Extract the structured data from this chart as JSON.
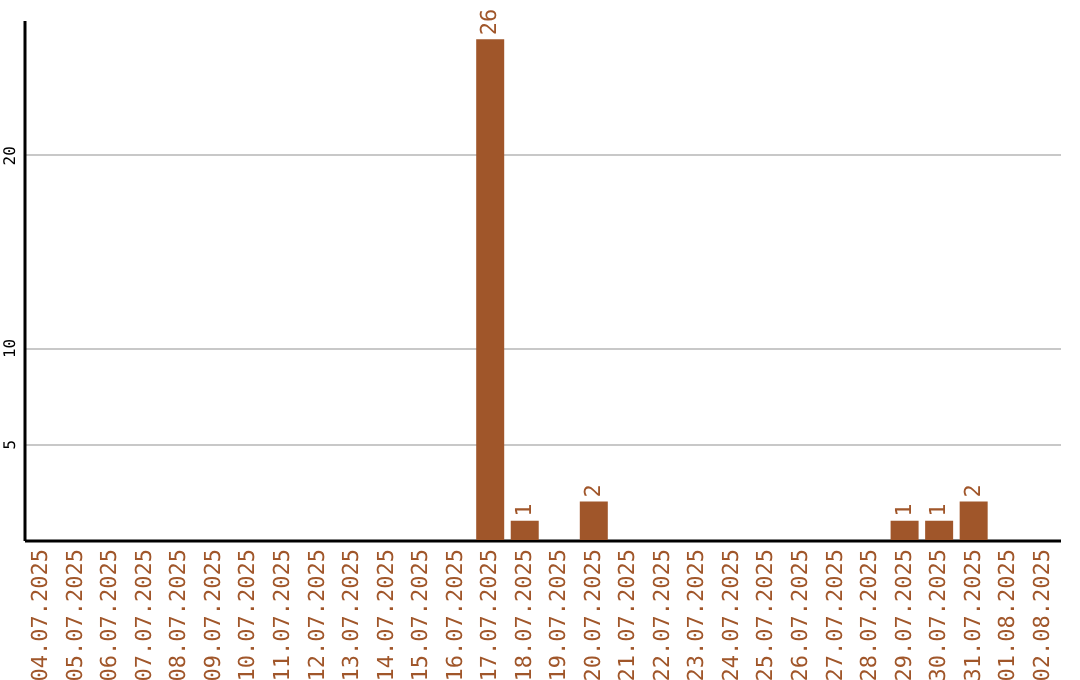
{
  "chart_data": {
    "type": "bar",
    "categories": [
      "04.07.2025",
      "05.07.2025",
      "06.07.2025",
      "07.07.2025",
      "08.07.2025",
      "09.07.2025",
      "10.07.2025",
      "11.07.2025",
      "12.07.2025",
      "13.07.2025",
      "14.07.2025",
      "15.07.2025",
      "16.07.2025",
      "17.07.2025",
      "18.07.2025",
      "19.07.2025",
      "20.07.2025",
      "21.07.2025",
      "22.07.2025",
      "23.07.2025",
      "24.07.2025",
      "25.07.2025",
      "26.07.2025",
      "27.07.2025",
      "28.07.2025",
      "29.07.2025",
      "30.07.2025",
      "31.07.2025",
      "01.08.2025",
      "02.08.2025"
    ],
    "values": [
      0,
      0,
      0,
      0,
      0,
      0,
      0,
      0,
      0,
      0,
      0,
      0,
      0,
      26,
      1,
      0,
      2,
      0,
      0,
      0,
      0,
      0,
      0,
      0,
      0,
      1,
      1,
      2,
      0,
      0
    ],
    "value_labels": [
      null,
      null,
      null,
      null,
      null,
      null,
      null,
      null,
      null,
      null,
      null,
      null,
      null,
      "26",
      "1",
      null,
      "2",
      null,
      null,
      null,
      null,
      null,
      null,
      null,
      null,
      "1",
      "1",
      "2",
      null,
      null
    ],
    "color": "#a0562a",
    "ylim": [
      0,
      27
    ],
    "yticks": [
      5,
      10,
      20
    ],
    "grid": "y"
  }
}
